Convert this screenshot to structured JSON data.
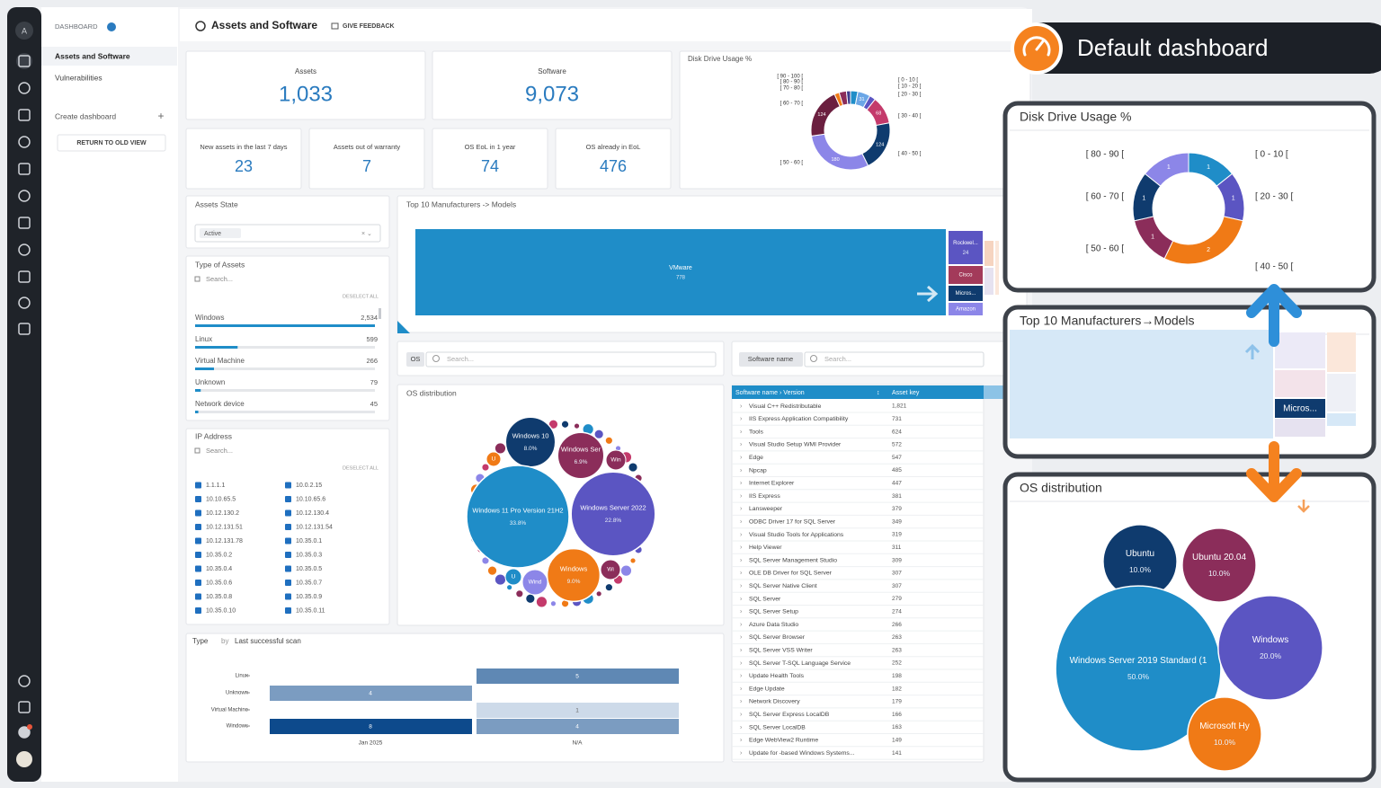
{
  "nav": {
    "avatar": "A",
    "section": "DASHBOARD",
    "items": [
      "Assets and Software",
      "Vulnerabilities"
    ],
    "create": "Create dashboard",
    "return": "RETURN TO OLD VIEW"
  },
  "header": {
    "title": "Assets and Software",
    "feedback": "GIVE FEEDBACK"
  },
  "kpis": [
    {
      "label": "Assets",
      "value": "1,033"
    },
    {
      "label": "Software",
      "value": "9,073"
    },
    {
      "label": "New assets in the last 7 days",
      "value": "23"
    },
    {
      "label": "Assets out of warranty",
      "value": "7"
    },
    {
      "label": "OS EoL in 1 year",
      "value": "74"
    },
    {
      "label": "OS already in EoL",
      "value": "476"
    }
  ],
  "disk_usage": {
    "type": "donut",
    "title": "Disk Drive Usage %",
    "categories": [
      "[ 0 - 10 [",
      "[ 10 - 20 [",
      "[ 20 - 30 [",
      "[ 30 - 40 [",
      "[ 40 - 50 [",
      "[ 50 - 60 [",
      "[ 60 - 70 [",
      "[ 70 - 80 [",
      "[ 80 - 90 [",
      "[ 90 - 100 ["
    ],
    "values": [
      18,
      31,
      15,
      68,
      124,
      180,
      124,
      12,
      18,
      10
    ],
    "colors": [
      "#1f8dc8",
      "#6ba6e6",
      "#5b55c2",
      "#c43a6b",
      "#0f3b6e",
      "#8c86e8",
      "#6b1f3f",
      "#f07a16",
      "#8b2d5a",
      "#3d3d8f"
    ]
  },
  "assets_state": {
    "title": "Assets State",
    "selected": "Active"
  },
  "asset_types": {
    "title": "Type of Assets",
    "search": "Search...",
    "deselect": "DESELECT ALL",
    "items": [
      {
        "name": "Windows",
        "count": {
          "value": 2534,
          "label": "2,534"
        }
      },
      {
        "name": "Linux",
        "count": 599
      },
      {
        "name": "Virtual Machine",
        "count": 266
      },
      {
        "name": "Unknown",
        "count": 79
      },
      {
        "name": "Network device",
        "count": 45
      }
    ]
  },
  "ip_address": {
    "title": "IP Address",
    "search": "Search...",
    "deselect": "DESELECT ALL",
    "items": [
      "1.1.1.1",
      "10.10.65.5",
      "10.12.130.2",
      "10.12.131.51",
      "10.12.131.78",
      "10.35.0.2",
      "10.35.0.4",
      "10.35.0.6",
      "10.35.0.8",
      "10.35.0.10",
      "10.0.2.15",
      "10.10.65.6",
      "10.12.130.4",
      "10.12.131.54",
      "10.35.0.1",
      "10.35.0.3",
      "10.35.0.5",
      "10.35.0.7",
      "10.35.0.9",
      "10.35.0.11"
    ]
  },
  "manufacturers": {
    "title": "Top 10 Manufacturers -> Models",
    "items": [
      {
        "name": "VMware",
        "value": 778,
        "color": "#1f8dc8"
      },
      {
        "name": "Rockwel...",
        "value": 24,
        "color": "#5b55c2"
      },
      {
        "name": "Cisco",
        "color": "#a33a5a"
      },
      {
        "name": "Micros...",
        "color": "#0f3b6e"
      },
      {
        "name": "Amazon",
        "color": "#8c86e8"
      }
    ]
  },
  "os_filter": {
    "tag": "OS",
    "search": "Search..."
  },
  "software_filter": {
    "tag": "Software name",
    "search": "Search..."
  },
  "os_distribution": {
    "type": "bubble",
    "title": "OS distribution",
    "bubbles": [
      {
        "name": "Windows 10",
        "value": 8.0,
        "value_label": "8.0%",
        "color": "#0f3b6e"
      },
      {
        "name": "Windows Ser",
        "value": 6.9,
        "value_label": "6.9%",
        "color": "#8b2d5a"
      },
      {
        "name": "Windows 11 Pro Version 21H2",
        "value": 33.8,
        "value_label": "33.8%",
        "color": "#1f8dc8"
      },
      {
        "name": "Windows Server 2022",
        "value": 22.8,
        "value_label": "22.8%",
        "color": "#5b55c2"
      },
      {
        "name": "Windows",
        "value": 9.0,
        "value_label": "9.0%",
        "color": "#f07a16"
      }
    ],
    "small": [
      "Win",
      "Wi",
      "Wind",
      "U",
      "U"
    ]
  },
  "software_table": {
    "columns": [
      "Software name › Version",
      "Asset key"
    ],
    "rows": [
      [
        "Visual C++ Redistributable",
        "1,821"
      ],
      [
        "IIS Express Application Compatibility",
        "731"
      ],
      [
        "Tools",
        "624"
      ],
      [
        "Visual Studio Setup WMI Provider",
        "572"
      ],
      [
        "Edge",
        "547"
      ],
      [
        "Npcap",
        "485"
      ],
      [
        "Internet Explorer",
        "447"
      ],
      [
        "IIS Express",
        "381"
      ],
      [
        "Lansweeper",
        "379"
      ],
      [
        "ODBC Driver 17 for SQL Server",
        "349"
      ],
      [
        "Visual Studio Tools for Applications",
        "319"
      ],
      [
        "Help Viewer",
        "311"
      ],
      [
        "SQL Server Management Studio",
        "309"
      ],
      [
        "OLE DB Driver for SQL Server",
        "307"
      ],
      [
        "SQL Server Native Client",
        "307"
      ],
      [
        "SQL Server",
        "279"
      ],
      [
        "SQL Server Setup",
        "274"
      ],
      [
        "Azure Data Studio",
        "266"
      ],
      [
        "SQL Server Browser",
        "263"
      ],
      [
        "SQL Server VSS Writer",
        "263"
      ],
      [
        "SQL Server T-SQL Language Service",
        "252"
      ],
      [
        "Update Health Tools",
        "198"
      ],
      [
        "Edge Update",
        "182"
      ],
      [
        "Network Discovery",
        "179"
      ],
      [
        "SQL Server Express LocalDB",
        "166"
      ],
      [
        "SQL Server LocalDB",
        "163"
      ],
      [
        "Edge WebView2 Runtime",
        "149"
      ],
      [
        "Update for -based Windows Systems...",
        "141"
      ]
    ]
  },
  "scan_chart": {
    "type": "heatmap",
    "group_by": "Type",
    "by": "by",
    "field": "Last successful scan",
    "color": "#0d4a8c",
    "categories": [
      "Linux",
      "Unknown",
      "Virtual Machine",
      "Windows"
    ],
    "series": [
      {
        "name": "Jan 2025",
        "values": [
          null,
          4,
          null,
          8
        ]
      },
      {
        "name": "N/A",
        "values": [
          5,
          null,
          1,
          4
        ]
      }
    ]
  },
  "callout": {
    "title": "Default dashboard"
  },
  "zoom": {
    "disk_usage": {
      "type": "donut",
      "title": "Disk Drive Usage %",
      "categories": [
        "[ 0 - 10 [",
        "[ 20 - 30 [",
        "[ 40 - 50 [",
        "[ 50 - 60 [",
        "[ 60 - 70 [",
        "[ 80 - 90 ["
      ],
      "values": [
        1,
        1,
        2,
        1,
        1,
        1
      ],
      "colors": [
        "#1f8dc8",
        "#5b55c2",
        "#f07a16",
        "#8b2d5a",
        "#0f3b6e",
        "#8c86e8"
      ]
    },
    "manufacturers": {
      "title": "Top 10 Manufacturers→Models",
      "label": "Micros..."
    },
    "os_distribution": {
      "type": "bubble",
      "title": "OS distribution",
      "bubbles": [
        {
          "name": "Ubuntu",
          "value": 10.0,
          "value_label": "10.0%",
          "color": "#0f3b6e"
        },
        {
          "name": "Ubuntu 20.04",
          "value": 10.0,
          "value_label": "10.0%",
          "color": "#8b2d5a"
        },
        {
          "name": "Windows Server 2019 Standard (1",
          "value": 50.0,
          "value_label": "50.0%",
          "color": "#1f8dc8"
        },
        {
          "name": "Windows",
          "value": 20.0,
          "value_label": "20.0%",
          "color": "#5b55c2"
        },
        {
          "name": "Microsoft Hy",
          "value": 10.0,
          "value_label": "10.0%",
          "color": "#f07a16"
        }
      ]
    }
  }
}
